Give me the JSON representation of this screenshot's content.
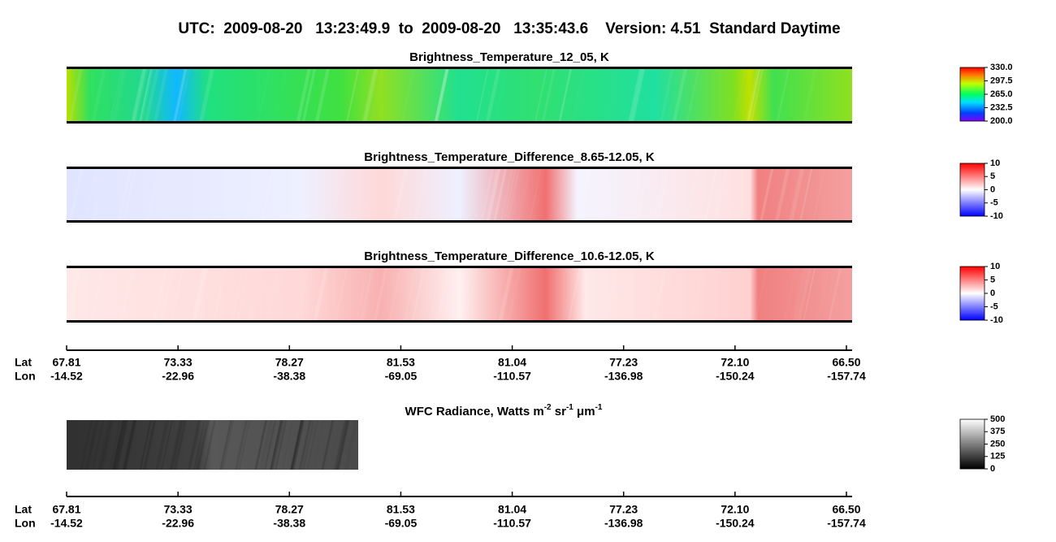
{
  "title": "UTC:  2009-08-20   13:23:49.9  to  2009-08-20   13:35:43.6    Version: 4.51  Standard Daytime",
  "panels": [
    {
      "title": "Brightness_Temperature_12_05, K",
      "colorbar": {
        "lim": [
          200,
          330
        ],
        "ticks": [
          {
            "value": 330,
            "label": "330.0"
          },
          {
            "value": 297.5,
            "label": "297.5"
          },
          {
            "value": 265,
            "label": "265.0"
          },
          {
            "value": 232.5,
            "label": "232.5"
          },
          {
            "value": 200,
            "label": "200.0"
          }
        ]
      }
    },
    {
      "title": "Brightness_Temperature_Difference_8.65-12.05, K",
      "colorbar": {
        "lim": [
          -10,
          10
        ],
        "ticks": [
          10,
          5,
          0,
          -5,
          -10
        ]
      }
    },
    {
      "title": "Brightness_Temperature_Difference_10.6-12.05, K",
      "colorbar": {
        "lim": [
          -10,
          10
        ],
        "ticks": [
          10,
          5,
          0,
          -5,
          -10
        ]
      }
    },
    {
      "title_parts": [
        "WFC Radiance, Watts m",
        "-2",
        " sr",
        "-1",
        " μm",
        "-1"
      ],
      "colorbar": {
        "lim": [
          0,
          500
        ],
        "ticks": [
          500,
          375,
          250,
          125,
          0
        ]
      }
    }
  ],
  "axis": {
    "lat_label": "Lat",
    "lon_label": "Lon",
    "lat": [
      "67.81",
      "73.33",
      "78.27",
      "81.53",
      "81.04",
      "77.23",
      "72.10",
      "66.50"
    ],
    "lon": [
      "-14.52",
      "-22.96",
      "-38.38",
      "-69.05",
      "-110.57",
      "-136.98",
      "-150.24",
      "-157.74"
    ]
  }
}
